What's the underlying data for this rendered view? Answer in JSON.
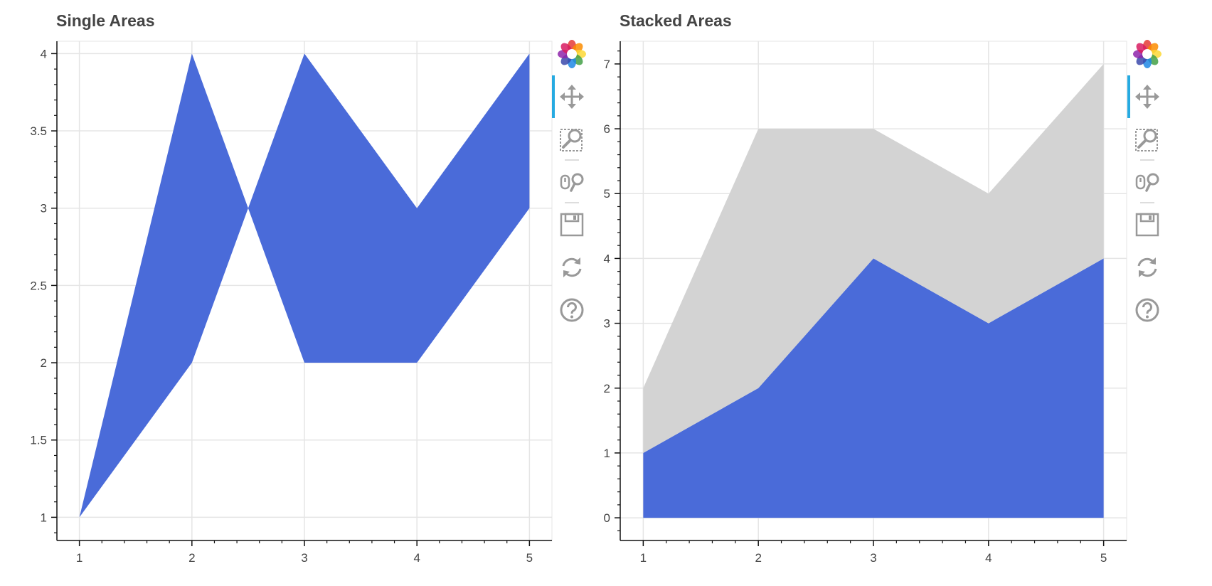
{
  "chart_data": [
    {
      "type": "area",
      "title": "Single Areas",
      "xlabel": "",
      "ylabel": "",
      "xlim": [
        0.8,
        5.2
      ],
      "ylim": [
        0.85,
        4.08
      ],
      "xticks": [
        1,
        2,
        3,
        4,
        5
      ],
      "yticks": [
        1,
        1.5,
        2,
        2.5,
        3,
        3.5,
        4
      ],
      "ytick_labels": [
        "1",
        "1.5",
        "2",
        "2.5",
        "3",
        "3.5",
        "4"
      ],
      "grid": true,
      "series": [
        {
          "x": [
            1,
            2,
            3,
            4,
            5
          ],
          "y1": [
            1,
            2,
            4,
            3,
            4
          ],
          "y2": [
            1,
            4,
            2,
            2,
            3
          ],
          "color": "#4a6bd9"
        }
      ]
    },
    {
      "type": "area",
      "title": "Stacked Areas",
      "xlabel": "",
      "ylabel": "",
      "xlim": [
        0.8,
        5.2
      ],
      "ylim": [
        -0.35,
        7.35
      ],
      "xticks": [
        1,
        2,
        3,
        4,
        5
      ],
      "yticks": [
        0,
        1,
        2,
        3,
        4,
        5,
        6,
        7
      ],
      "ytick_labels": [
        "0",
        "1",
        "2",
        "3",
        "4",
        "5",
        "6",
        "7"
      ],
      "grid": true,
      "stacked": true,
      "series": [
        {
          "x": [
            1,
            2,
            3,
            4,
            5
          ],
          "values": [
            1,
            2,
            4,
            3,
            4
          ],
          "color": "#4a6bd9"
        },
        {
          "x": [
            1,
            2,
            3,
            4,
            5
          ],
          "values": [
            1,
            4,
            2,
            2,
            3
          ],
          "color": "#d3d3d3"
        }
      ]
    }
  ],
  "toolbar": {
    "tools": [
      "bokeh-logo-icon",
      "pan-icon",
      "box-zoom-icon",
      "wheel-zoom-icon",
      "save-icon",
      "reset-icon",
      "help-icon"
    ],
    "icon_color": "#999999",
    "active_color": "#26aae1"
  }
}
